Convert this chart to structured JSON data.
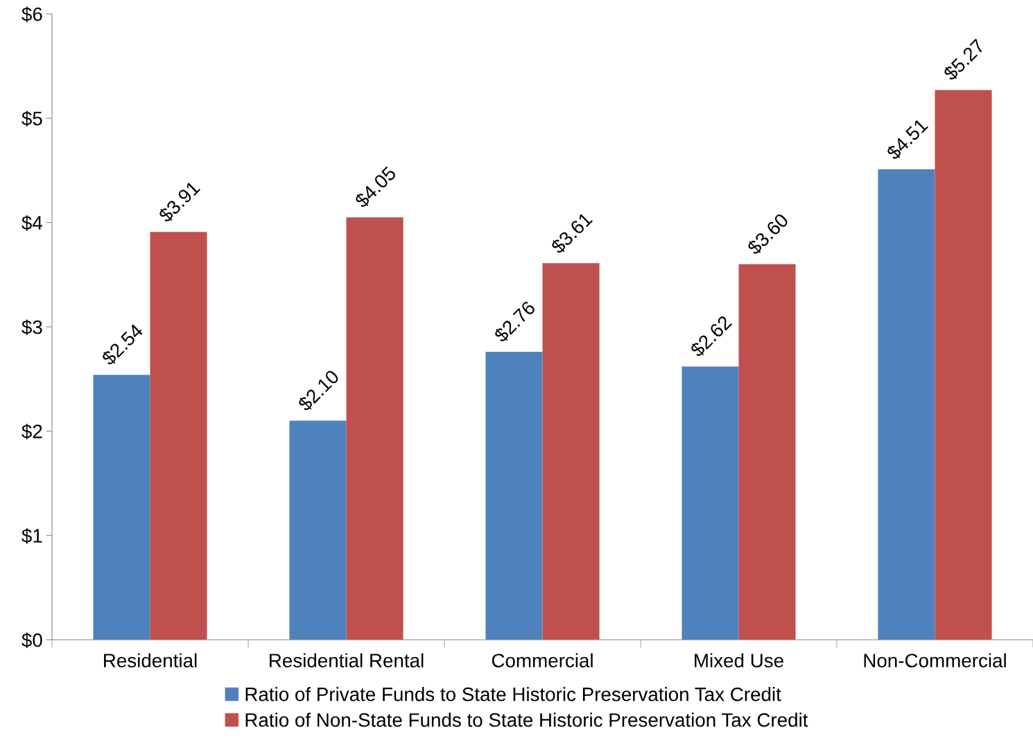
{
  "chart_data": {
    "type": "bar",
    "categories": [
      "Residential",
      "Residential Rental",
      "Commercial",
      "Mixed Use",
      "Non-Commercial"
    ],
    "series": [
      {
        "name": "Ratio of Private Funds to State Historic Preservation Tax Credit",
        "color": "#4f81bd",
        "values": [
          2.54,
          2.1,
          2.76,
          2.62,
          4.51
        ],
        "value_labels": [
          "$2.54",
          "$2.10",
          "$2.76",
          "$2.62",
          "$4.51"
        ]
      },
      {
        "name": "Ratio of Non-State Funds to State Historic Preservation Tax Credit",
        "color": "#c0504d",
        "values": [
          3.91,
          4.05,
          3.61,
          3.6,
          5.27
        ],
        "value_labels": [
          "$3.91",
          "$4.05",
          "$3.61",
          "$3.60",
          "$5.27"
        ]
      }
    ],
    "ylim": [
      0,
      6
    ],
    "yticks": [
      {
        "value": 0,
        "label": "$0"
      },
      {
        "value": 1,
        "label": "$1"
      },
      {
        "value": 2,
        "label": "$2"
      },
      {
        "value": 3,
        "label": "$3"
      },
      {
        "value": 4,
        "label": "$4"
      },
      {
        "value": 5,
        "label": "$5"
      },
      {
        "value": 6,
        "label": "$6"
      }
    ],
    "grid": false,
    "legend": "bottom"
  }
}
